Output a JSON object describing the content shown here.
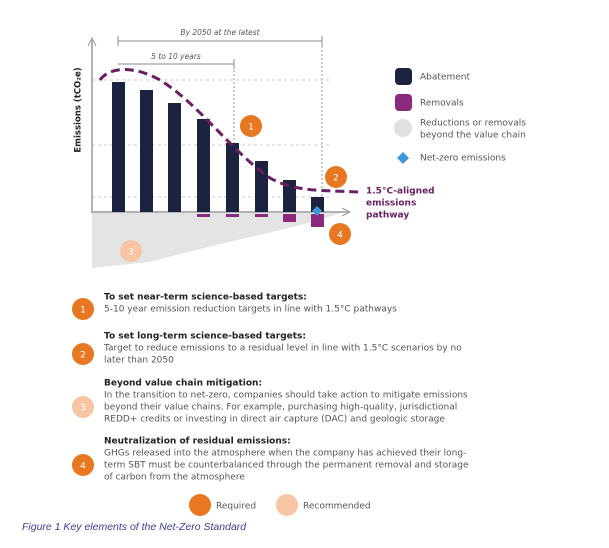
{
  "figure": {
    "timeline_long": "By 2050 at the latest",
    "timeline_short": "5 to 10 years",
    "y_axis_label": "Emissions (tCO₂e)",
    "pathway_label": [
      "1.5°C-aligned",
      "emissions",
      "pathway"
    ],
    "markers": [
      "1",
      "2",
      "3",
      "4"
    ],
    "legend": {
      "abatement": "Abatement",
      "removals": "Removals",
      "beyond": [
        "Reductions or removals",
        "beyond the value chain"
      ],
      "net_zero": "Net-zero emissions"
    }
  },
  "items": [
    {
      "number": "1",
      "title": "To set near-term science-based targets:",
      "lines": [
        "5-10 year emission reduction targets in line with 1.5°C pathways"
      ]
    },
    {
      "number": "2",
      "title": "To set long-term science-based targets:",
      "lines": [
        "Target to reduce emissions to a residual level in line with 1.5°C scenarios by no",
        "later than 2050"
      ]
    },
    {
      "number": "3",
      "title": "Beyond value chain mitigation:",
      "lines": [
        "In the transition to net-zero, companies should take action to mitigate emissions",
        "beyond their value chains. For example, purchasing high-quality, jurisdictional",
        "REDD+ credits or investing in direct air capture (DAC) and geologic storage"
      ]
    },
    {
      "number": "4",
      "title": "Neutralization of residual emissions:",
      "lines": [
        "GHGs released into the atmosphere when the company has achieved their long-",
        "term SBT must be counterbalanced through the permanent removal and storage",
        "of carbon from the atmosphere"
      ]
    }
  ],
  "key": {
    "required": "Required",
    "recommended": "Recommended"
  },
  "caption": "Figure 1 Key elements of the Net-Zero Standard"
}
